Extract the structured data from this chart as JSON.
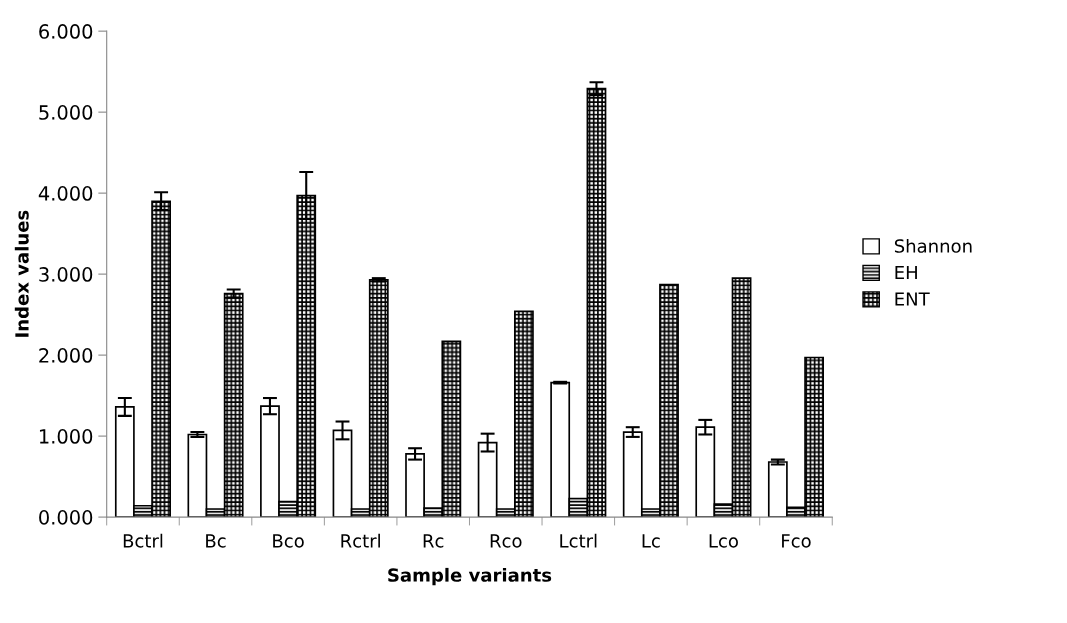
{
  "chart_data": {
    "type": "bar",
    "xlabel": "Sample variants",
    "ylabel": "Index values",
    "categories": [
      "Bctrl",
      "Bc",
      "Bco",
      "Rctrl",
      "Rc",
      "Rco",
      "Lctrl",
      "Lc",
      "Lco",
      "Fco"
    ],
    "series": [
      {
        "name": "Shannon",
        "color": "#ffffff",
        "values": [
          1.36,
          1.02,
          1.37,
          1.07,
          0.78,
          0.92,
          1.66,
          1.05,
          1.11,
          0.68
        ],
        "errors": [
          0.11,
          0.03,
          0.1,
          0.11,
          0.07,
          0.11,
          0.01,
          0.06,
          0.09,
          0.03
        ]
      },
      {
        "name": "EH",
        "color": "#000000",
        "values": [
          0.14,
          0.1,
          0.19,
          0.1,
          0.11,
          0.1,
          0.23,
          0.1,
          0.16,
          0.12
        ]
      },
      {
        "name": "ENT",
        "color": "#000000",
        "values": [
          3.9,
          2.76,
          3.97,
          2.93,
          2.17,
          2.54,
          5.29,
          2.87,
          2.95,
          1.97
        ],
        "errors": [
          0.11,
          0.05,
          0.29,
          0.02,
          null,
          null,
          0.08,
          null,
          null,
          null
        ]
      }
    ],
    "ylim": [
      0,
      6
    ],
    "yticks": [
      {
        "value": 0,
        "label": "0.000"
      },
      {
        "value": 1,
        "label": "1.000"
      },
      {
        "value": 2,
        "label": "2.000"
      },
      {
        "value": 3,
        "label": "3.000"
      },
      {
        "value": 4,
        "label": "4.000"
      },
      {
        "value": 5,
        "label": "5.000"
      },
      {
        "value": 6,
        "label": "6.000"
      }
    ],
    "legend": "right"
  }
}
